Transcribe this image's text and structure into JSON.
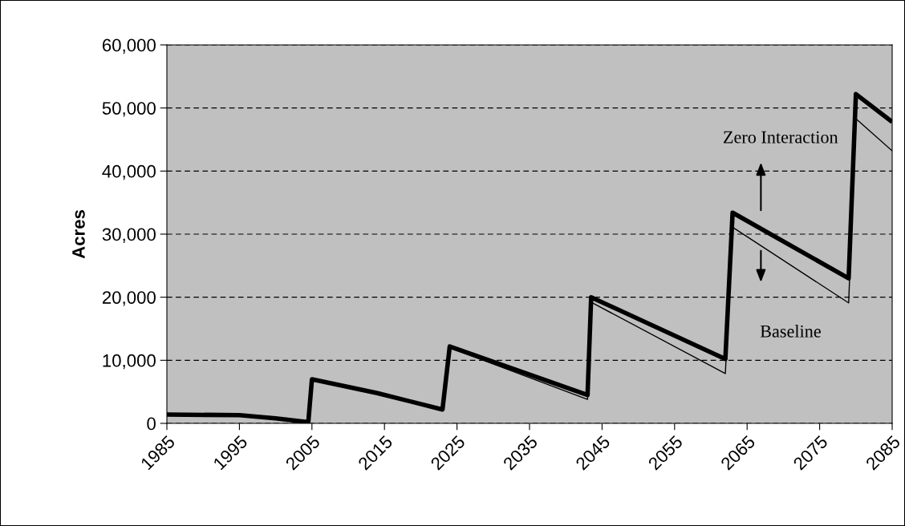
{
  "chart_data": {
    "type": "line",
    "ylabel": "Acres",
    "xlim": [
      1985,
      2085
    ],
    "xticks": [
      1985,
      1995,
      2005,
      2015,
      2025,
      2035,
      2045,
      2055,
      2065,
      2075,
      2085
    ],
    "ylim": [
      0,
      60000
    ],
    "yticks": [
      {
        "value": 0,
        "label": "0"
      },
      {
        "value": 10000,
        "label": "10,000"
      },
      {
        "value": 20000,
        "label": "20,000"
      },
      {
        "value": 30000,
        "label": "30,000"
      },
      {
        "value": 40000,
        "label": "40,000"
      },
      {
        "value": 50000,
        "label": "50,000"
      },
      {
        "value": 60000,
        "label": "60,000"
      }
    ],
    "grid": "y",
    "legend": false,
    "marker": "none",
    "series": [
      {
        "color": "#000000",
        "x": [
          1985,
          1995,
          2000,
          2004.5,
          2005,
          2014,
          2023,
          2024,
          2043,
          2043.5,
          2062,
          2063,
          2079,
          2080,
          2085
        ],
        "values": [
          1400,
          1300,
          800,
          200,
          7000,
          4800,
          2000,
          12000,
          3800,
          19200,
          7900,
          31100,
          19100,
          48300,
          43200
        ]
      },
      {
        "color": "#000000",
        "x": [
          1985,
          1995,
          2000,
          2004.5,
          2005,
          2014,
          2023,
          2024,
          2043,
          2043.5,
          2062,
          2063,
          2079,
          2080,
          2085
        ],
        "values": [
          1400,
          1300,
          800,
          200,
          7000,
          4800,
          2200,
          12200,
          4500,
          20000,
          10200,
          33400,
          23000,
          52200,
          47800
        ]
      }
    ],
    "annotations": [
      "Zero Interaction",
      "Baseline"
    ]
  }
}
